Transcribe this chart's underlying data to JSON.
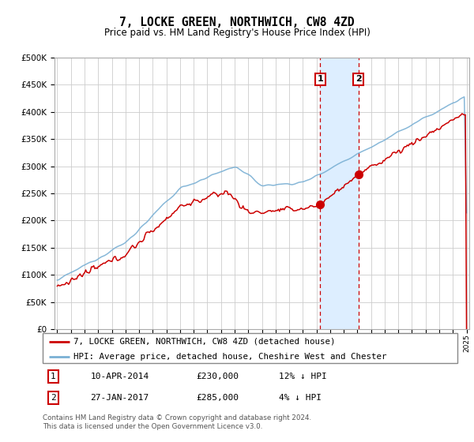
{
  "title": "7, LOCKE GREEN, NORTHWICH, CW8 4ZD",
  "subtitle": "Price paid vs. HM Land Registry's House Price Index (HPI)",
  "ylim": [
    0,
    500000
  ],
  "yticks": [
    0,
    50000,
    100000,
    150000,
    200000,
    250000,
    300000,
    350000,
    400000,
    450000,
    500000
  ],
  "hpi_color": "#7ab0d4",
  "property_color": "#cc0000",
  "marker_color": "#cc0000",
  "vline_color": "#cc0000",
  "shade_color": "#ddeeff",
  "grid_color": "#cccccc",
  "bg_color": "#ffffff",
  "transaction1_date": "10-APR-2014",
  "transaction1_price": 230000,
  "transaction1_pct": "12% ↓ HPI",
  "transaction1_x": 2014.27,
  "transaction2_date": "27-JAN-2017",
  "transaction2_price": 285000,
  "transaction2_pct": "4% ↓ HPI",
  "transaction2_x": 2017.07,
  "legend_property": "7, LOCKE GREEN, NORTHWICH, CW8 4ZD (detached house)",
  "legend_hpi": "HPI: Average price, detached house, Cheshire West and Chester",
  "footnote": "Contains HM Land Registry data © Crown copyright and database right 2024.\nThis data is licensed under the Open Government Licence v3.0.",
  "start_year": 1995,
  "end_year": 2025
}
